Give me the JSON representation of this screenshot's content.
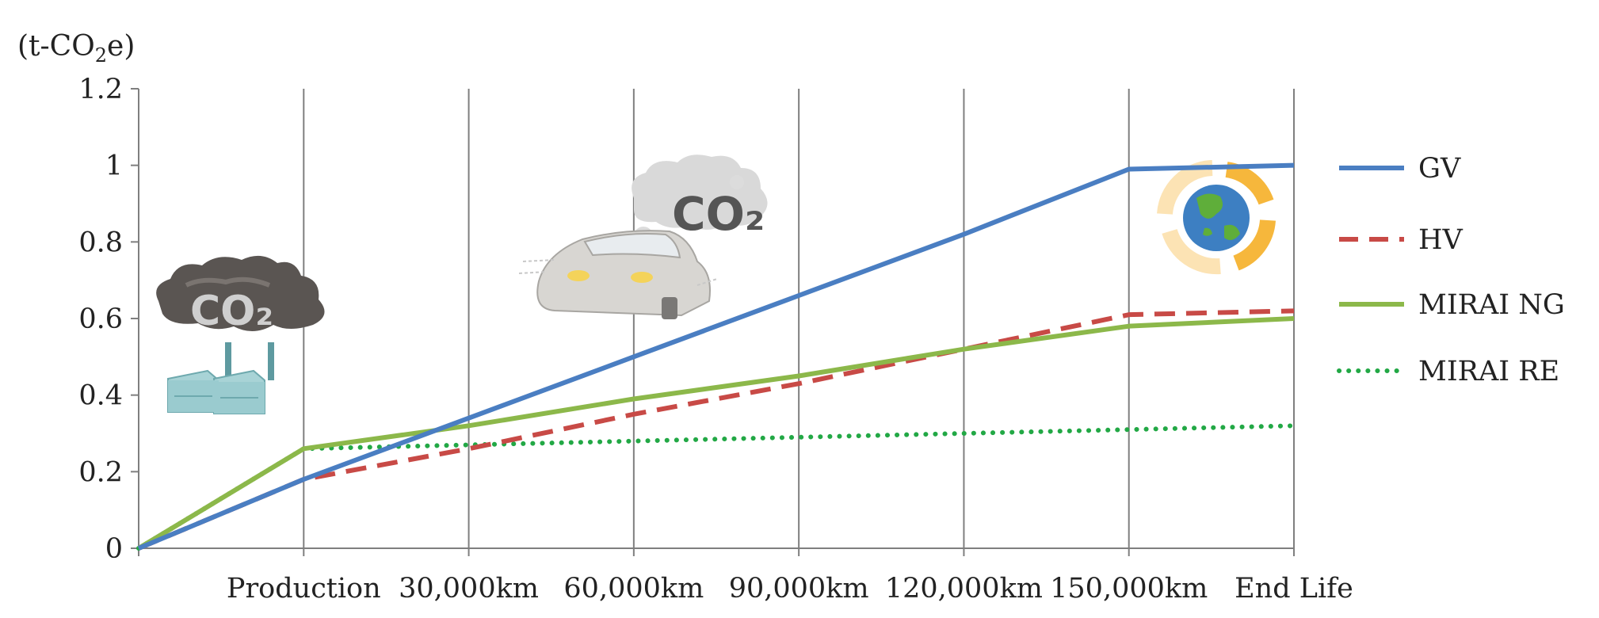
{
  "chart_data": {
    "type": "line",
    "ylabel_prefix": "(t-CO",
    "ylabel_sub": "2",
    "ylabel_suffix": "e)",
    "categories": [
      "",
      "Production",
      "30,000km",
      "60,000km",
      "90,000km",
      "120,000km",
      "150,000km",
      "End Life"
    ],
    "ylim": [
      0,
      1.2
    ],
    "yticks": [
      0,
      0.2,
      0.4,
      0.6,
      0.8,
      1,
      1.2
    ],
    "ytick_labels": [
      "0",
      "0.2",
      "0.4",
      "0.6",
      "0.8",
      "1",
      "1.2"
    ],
    "grid": "vertical",
    "legend_position": "right",
    "series": [
      {
        "name": "GV",
        "values": [
          0,
          0.18,
          0.34,
          0.5,
          0.66,
          0.82,
          0.99,
          1.0
        ],
        "color": "#4a7ec2",
        "style": "solid"
      },
      {
        "name": "HV",
        "values": [
          0,
          0.18,
          0.26,
          0.35,
          0.43,
          0.52,
          0.61,
          0.62
        ],
        "color": "#c84a46",
        "style": "dashed"
      },
      {
        "name": "MIRAI NG",
        "values": [
          0,
          0.26,
          0.32,
          0.39,
          0.45,
          0.52,
          0.58,
          0.6
        ],
        "color": "#8cb84a",
        "style": "solid"
      },
      {
        "name": "MIRAI RE",
        "values": [
          0,
          0.26,
          0.27,
          0.28,
          0.29,
          0.3,
          0.31,
          0.32
        ],
        "color": "#22a845",
        "style": "dotted"
      }
    ]
  },
  "illustrations": {
    "factory_label": "CO₂",
    "car_label": "CO₂"
  },
  "icons": [
    "factory-icon",
    "car-icon",
    "recycle-globe-icon"
  ]
}
